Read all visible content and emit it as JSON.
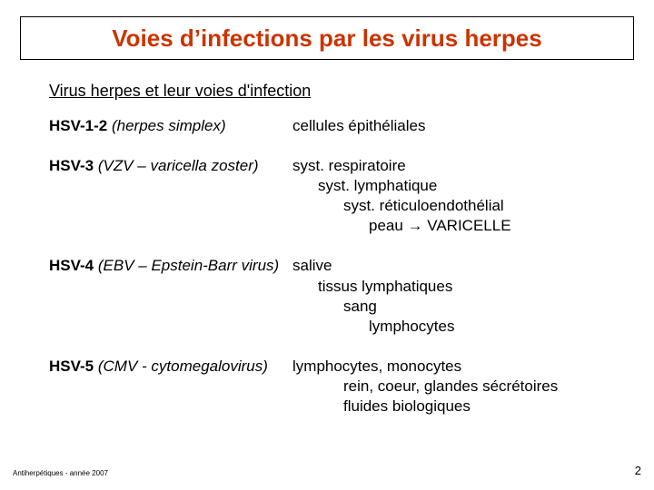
{
  "title": {
    "text": "Voies d’infections par les virus herpes",
    "color": "#cc3300"
  },
  "subtitle": "Virus herpes et leur voies d'infection",
  "rows": [
    {
      "label_bold": "HSV-1-2",
      "label_paren": " (herpes simplex)",
      "lines": [
        {
          "text": "cellules épithéliales",
          "indent": 0
        }
      ]
    },
    {
      "label_bold": "HSV-3",
      "label_paren": " (VZV – varicella zoster)",
      "lines": [
        {
          "text": "syst. respiratoire",
          "indent": 0
        },
        {
          "text": "syst. lymphatique",
          "indent": 1
        },
        {
          "text": "syst. réticuloendothélial",
          "indent": 2
        },
        {
          "text": "peau  → VARICELLE",
          "indent": 3
        }
      ]
    },
    {
      "label_bold": "HSV-4",
      "label_paren": " (EBV – Epstein-Barr virus)",
      "lines": [
        {
          "text": "salive",
          "indent": 0
        },
        {
          "text": "tissus lymphatiques",
          "indent": 1
        },
        {
          "text": "sang",
          "indent": 2
        },
        {
          "text": "lymphocytes",
          "indent": 3
        }
      ]
    },
    {
      "label_bold": "HSV-5",
      "label_paren": " (CMV - cytomegalovirus)",
      "lines": [
        {
          "text": "lymphocytes, monocytes",
          "indent": 0
        },
        {
          "text": "rein, coeur, glandes sécrétoires",
          "indent": 2
        },
        {
          "text": "fluides biologiques",
          "indent": 2
        }
      ]
    }
  ],
  "footer": "Antiherpétiques - année 2007",
  "page": "2",
  "body_text_color": "#000000",
  "background": "#ffffff"
}
